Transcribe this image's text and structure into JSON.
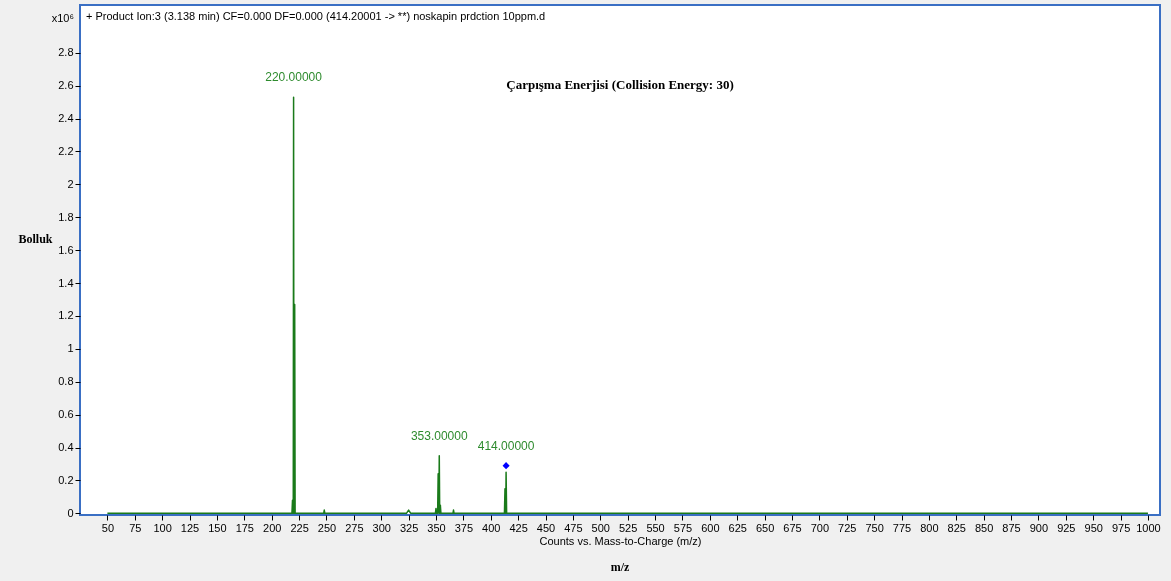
{
  "chart_data": {
    "type": "line",
    "title": "+ Product Ion:3 (3.138 min) CF=0.000 DF=0.000 (414.20001 -> **) noskapin prdction 10ppm.d",
    "xlabel": "Counts vs. Mass-to-Charge (m/z)",
    "ylabel": "Bolluk",
    "annotations": [
      "x10⁶",
      "Çarpışma Enerjisi (Collision Energy: 30)",
      "m/z",
      {
        "text": "220.00000",
        "x": 220,
        "y": 2.53
      },
      {
        "text": "353.00000",
        "x": 353,
        "y": 0.35
      },
      {
        "text": "414.00000",
        "x": 414,
        "y": 0.29
      }
    ],
    "series": [
      {
        "color": "#1a7a1a",
        "x": [
          50,
          218.5,
          219,
          219.5,
          219.7,
          220,
          220.3,
          220.6,
          221,
          221.4,
          247.5,
          248,
          248.5,
          323,
          325,
          327,
          349.5,
          350,
          350.5,
          351.5,
          352,
          352.6,
          353,
          353.4,
          354,
          354.5,
          365.5,
          366,
          366.5,
          412.5,
          413,
          413.4,
          413.7,
          414,
          414.5,
          1000
        ],
        "values": [
          0,
          0,
          0.08,
          0,
          0,
          2.53,
          0,
          0,
          1.27,
          0,
          0,
          0.02,
          0,
          0,
          0.02,
          0,
          0,
          0.03,
          0,
          0,
          0.24,
          0,
          0.35,
          0,
          0.05,
          0,
          0,
          0.02,
          0,
          0,
          0.15,
          0,
          0,
          0.25,
          0,
          0
        ]
      },
      {
        "type": "scatter",
        "marker": "diamond",
        "color": "#0000ff",
        "x": [
          414
        ],
        "values": [
          0.29
        ]
      }
    ],
    "xlim": [
      25,
      1011
    ],
    "xticks": [
      50,
      75,
      100,
      125,
      150,
      175,
      200,
      225,
      250,
      275,
      300,
      325,
      350,
      375,
      400,
      425,
      450,
      475,
      500,
      525,
      550,
      575,
      600,
      625,
      650,
      675,
      700,
      725,
      750,
      775,
      800,
      825,
      850,
      875,
      900,
      925,
      950,
      975,
      1000
    ],
    "ylim": [
      -0.01,
      3.09
    ],
    "yticks": [
      0,
      0.2,
      0.4,
      0.6,
      0.8,
      1,
      1.2,
      1.4,
      1.6,
      1.8,
      2,
      2.2,
      2.4,
      2.6,
      2.8
    ],
    "grid": false
  }
}
